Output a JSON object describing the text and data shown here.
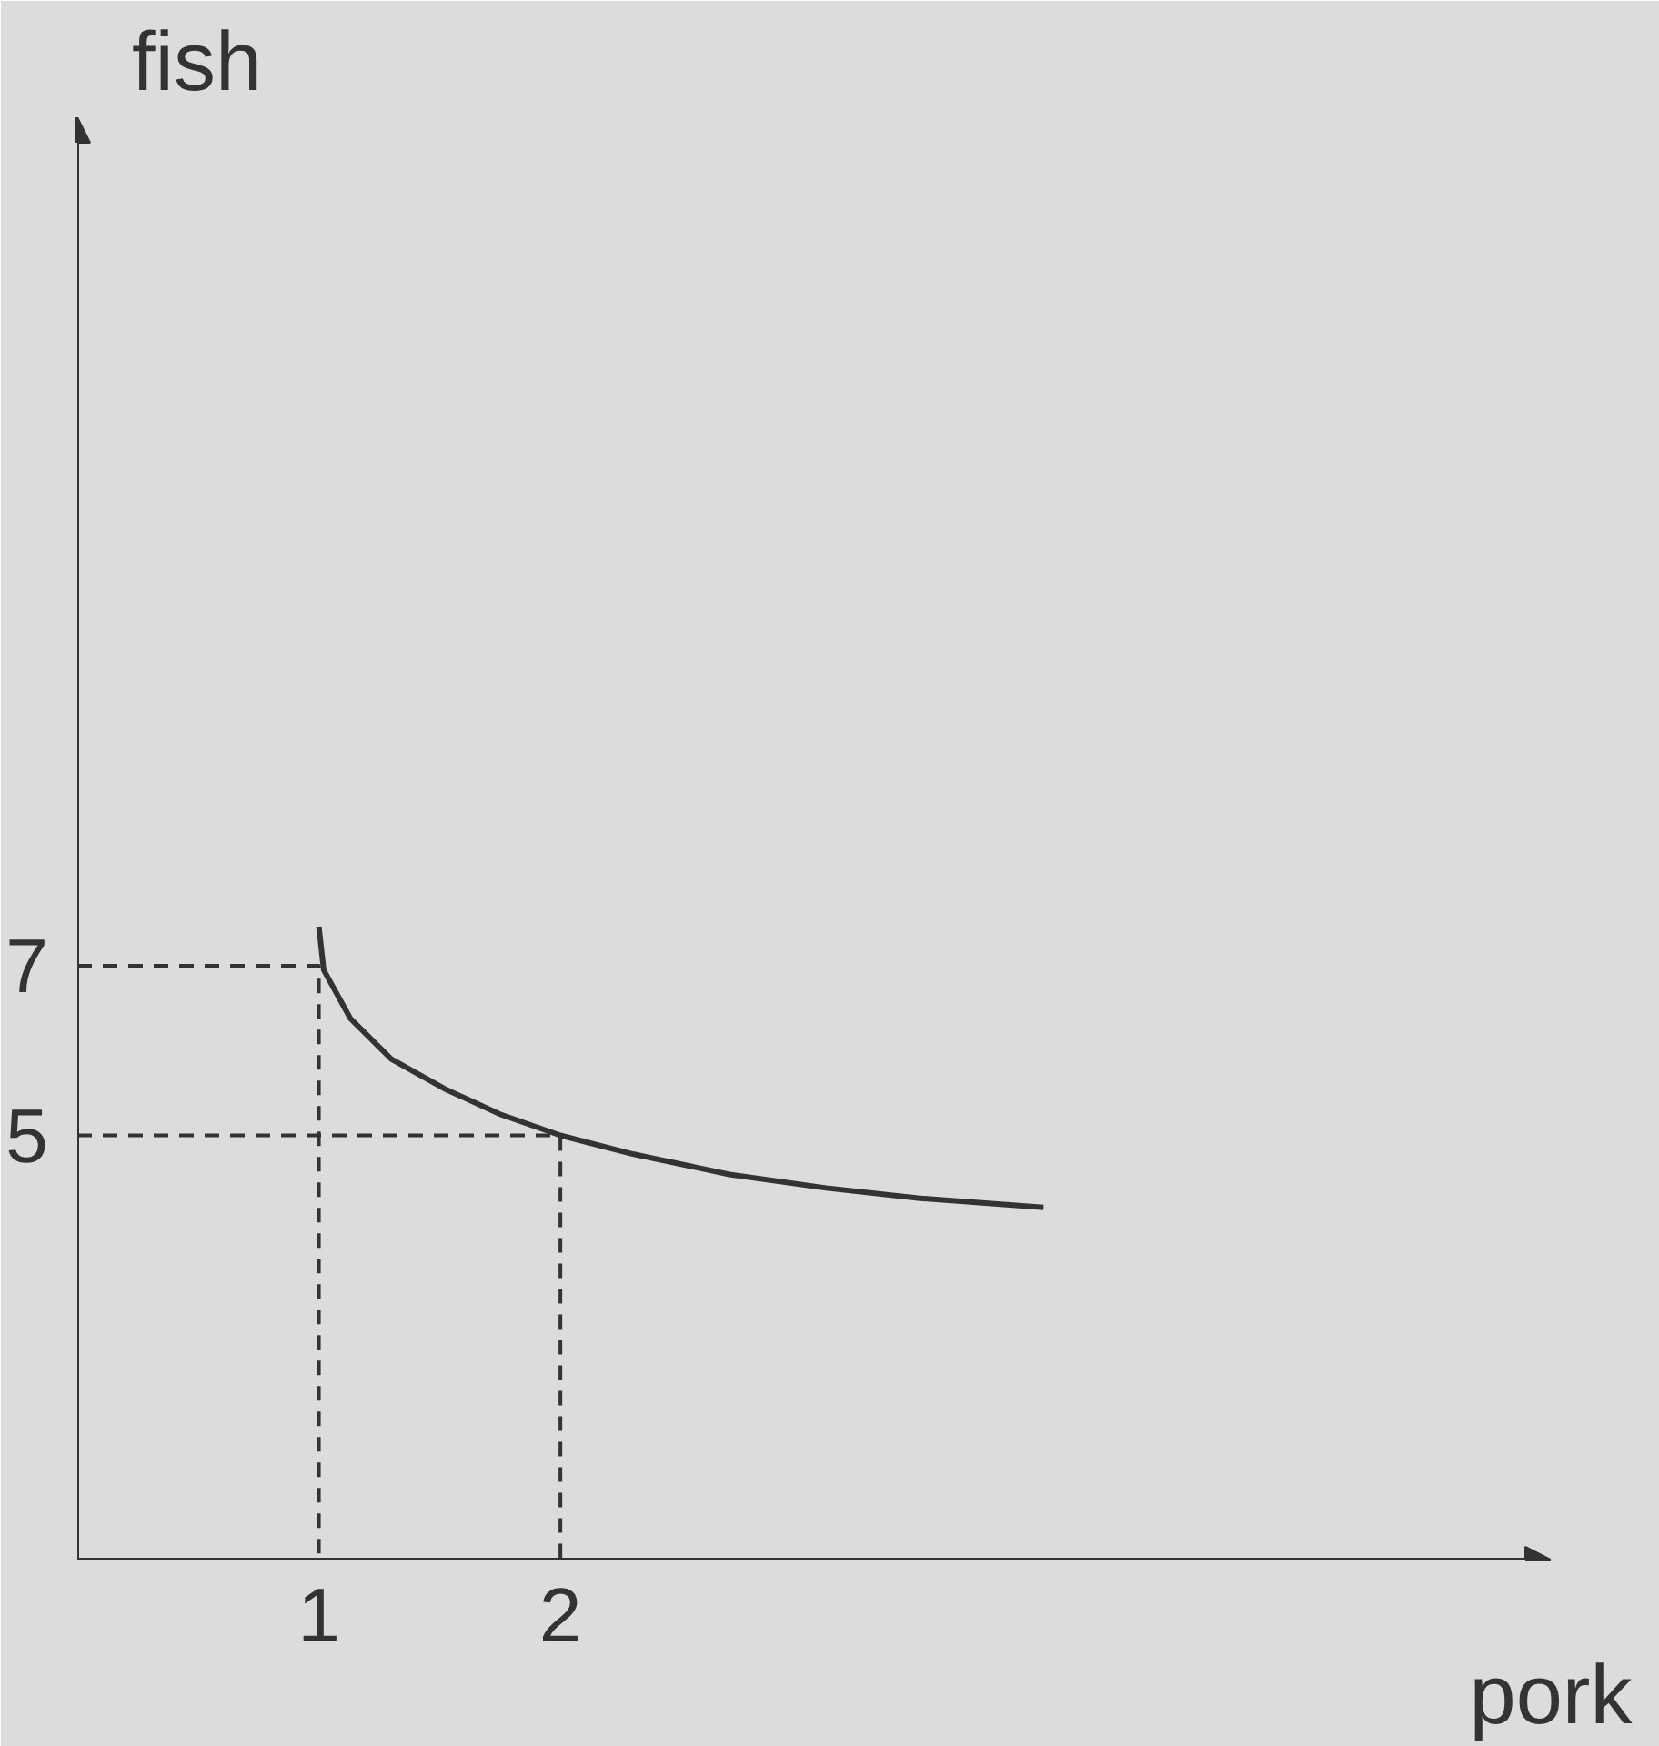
{
  "chart_data": {
    "type": "line",
    "xlabel": "pork",
    "ylabel": "fish",
    "xlim": [
      0,
      6.1
    ],
    "ylim": [
      0,
      17
    ],
    "xticks": [
      1,
      2
    ],
    "yticks": [
      5,
      7
    ],
    "grid": false,
    "series": [
      {
        "color": "#333333",
        "line_style": "solid",
        "x": [
          1,
          1.02,
          1.13,
          1.3,
          1.52,
          1.75,
          2,
          2.3,
          2.7,
          3.1,
          3.48,
          4
        ],
        "values": [
          7.46,
          6.95,
          6.38,
          5.9,
          5.55,
          5.25,
          5,
          4.78,
          4.54,
          4.38,
          4.26,
          4.15
        ]
      },
      {
        "color": "#333333",
        "line_style": "dashed",
        "x": [
          0,
          1,
          1
        ],
        "values": [
          7,
          7,
          0
        ]
      },
      {
        "color": "#333333",
        "line_style": "dashed",
        "x": [
          0,
          2,
          2
        ],
        "values": [
          5,
          5,
          0
        ]
      }
    ]
  }
}
